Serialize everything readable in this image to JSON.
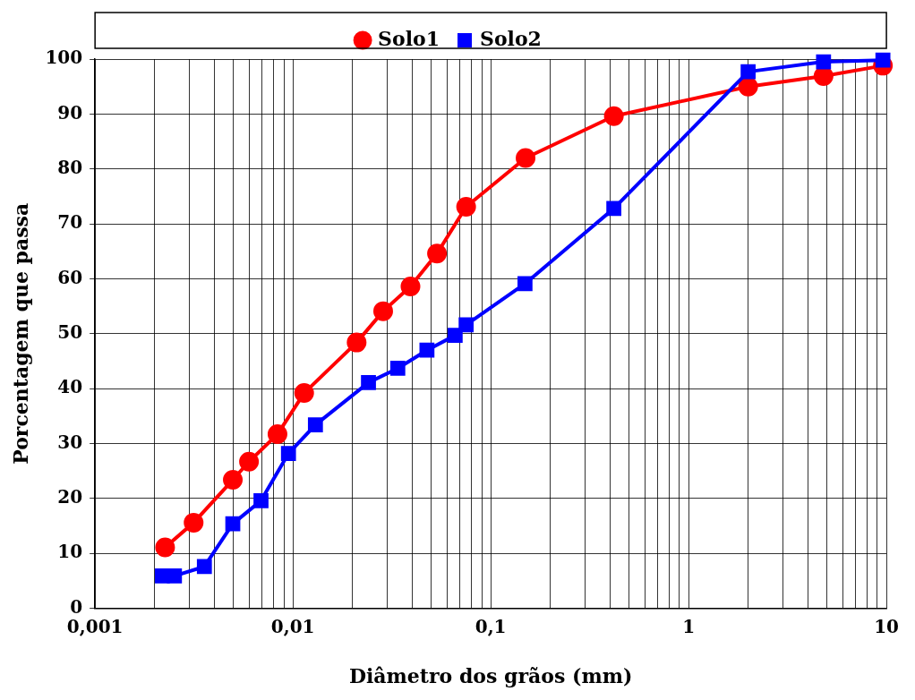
{
  "chart_data": {
    "type": "line",
    "xlabel": "Diâmetro dos grãos (mm)",
    "ylabel": "Porcentagem que passa",
    "log": "x",
    "grid": true,
    "legend": "top",
    "line_style": "solid",
    "xlim": [
      0.001,
      10
    ],
    "ylim": [
      0,
      100
    ],
    "xticks": [
      {
        "value": 0.001,
        "label": "0,001"
      },
      {
        "value": 0.002,
        "label": null
      },
      {
        "value": 0.003,
        "label": null
      },
      {
        "value": 0.004,
        "label": null
      },
      {
        "value": 0.005,
        "label": null
      },
      {
        "value": 0.006,
        "label": null
      },
      {
        "value": 0.007,
        "label": null
      },
      {
        "value": 0.008,
        "label": null
      },
      {
        "value": 0.009,
        "label": null
      },
      {
        "value": 0.01,
        "label": "0,01"
      },
      {
        "value": 0.02,
        "label": null
      },
      {
        "value": 0.03,
        "label": null
      },
      {
        "value": 0.04,
        "label": null
      },
      {
        "value": 0.05,
        "label": null
      },
      {
        "value": 0.06,
        "label": null
      },
      {
        "value": 0.07,
        "label": null
      },
      {
        "value": 0.08,
        "label": null
      },
      {
        "value": 0.09,
        "label": null
      },
      {
        "value": 0.1,
        "label": "0,1"
      },
      {
        "value": 0.2,
        "label": null
      },
      {
        "value": 0.3,
        "label": null
      },
      {
        "value": 0.4,
        "label": null
      },
      {
        "value": 0.5,
        "label": null
      },
      {
        "value": 0.6,
        "label": null
      },
      {
        "value": 0.7,
        "label": null
      },
      {
        "value": 0.8,
        "label": null
      },
      {
        "value": 0.9,
        "label": null
      },
      1,
      {
        "value": 2,
        "label": null
      },
      {
        "value": 3,
        "label": null
      },
      {
        "value": 4,
        "label": null
      },
      {
        "value": 5,
        "label": null
      },
      {
        "value": 6,
        "label": null
      },
      {
        "value": 7,
        "label": null
      },
      {
        "value": 8,
        "label": null
      },
      {
        "value": 9,
        "label": null
      },
      10
    ],
    "yticks": [
      0,
      10,
      20,
      30,
      40,
      50,
      60,
      70,
      80,
      90,
      100
    ],
    "series": [
      {
        "name": "Solo1",
        "color": "#ff0000",
        "marker": "circle",
        "x": [
          0.00226,
          0.00315,
          0.00497,
          0.006,
          0.00836,
          0.0114,
          0.021,
          0.0286,
          0.0393,
          0.0535,
          0.0751,
          0.15,
          0.419,
          2.0,
          4.81,
          9.6
        ],
        "values": [
          11.1,
          15.6,
          23.4,
          26.7,
          31.7,
          39.2,
          48.4,
          54.1,
          58.6,
          64.6,
          73.1,
          82.0,
          89.6,
          95.0,
          96.9,
          98.8
        ]
      },
      {
        "name": "Solo2",
        "color": "#0000ff",
        "marker": "square",
        "x": [
          0.00219,
          0.00252,
          0.00357,
          0.00497,
          0.0069,
          0.0095,
          0.013,
          0.0241,
          0.0339,
          0.0476,
          0.0661,
          0.0751,
          0.149,
          0.419,
          2.0,
          4.81,
          9.6
        ],
        "values": [
          5.9,
          5.9,
          7.6,
          15.4,
          19.6,
          28.2,
          33.4,
          41.1,
          43.7,
          47.0,
          49.7,
          51.6,
          59.1,
          72.8,
          97.7,
          99.5,
          99.8
        ]
      }
    ]
  }
}
